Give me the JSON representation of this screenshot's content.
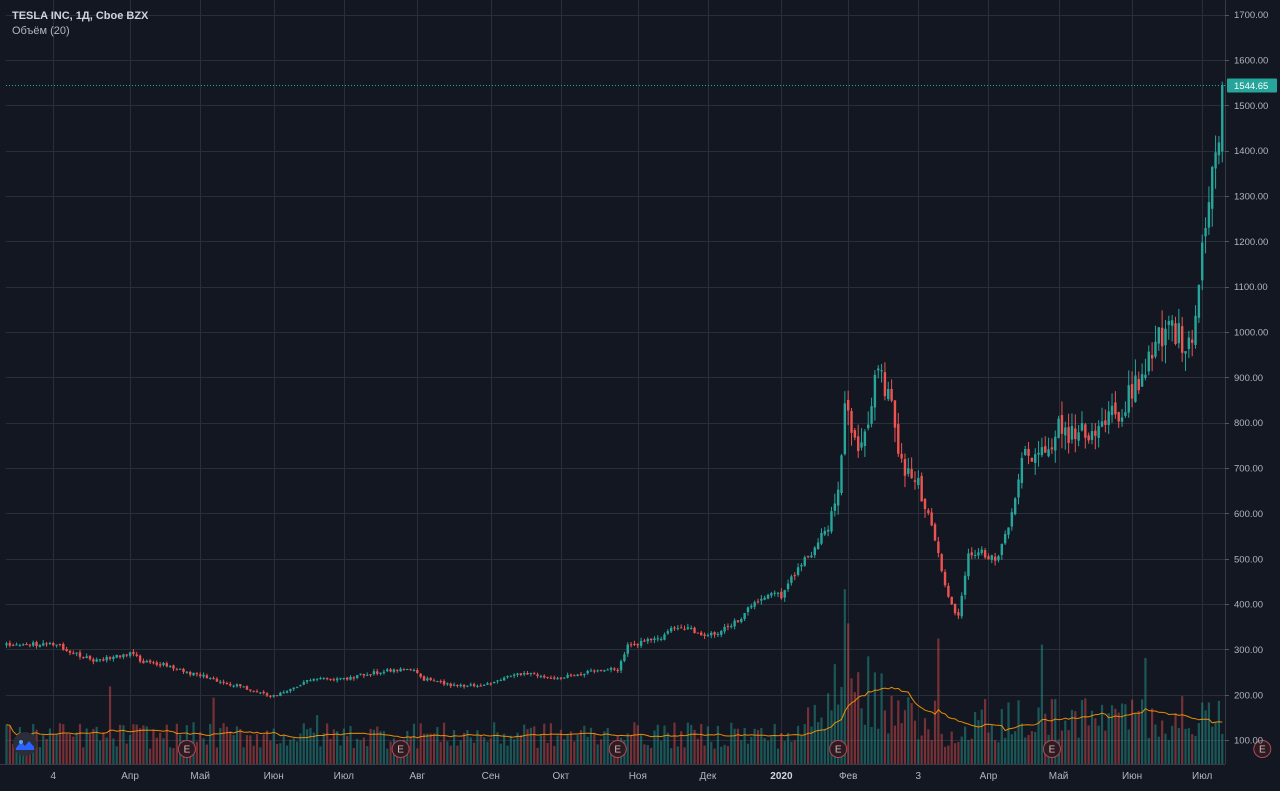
{
  "legend": {
    "title": "TESLA INC, 1Д, Cboe BZX",
    "volume_label": "Объём (20)"
  },
  "colors": {
    "background": "#131722",
    "grid": "#2a2e39",
    "up": "#26a69a",
    "down": "#ef5350",
    "ma": "#ff9800",
    "last_price_bg": "#26a69a"
  },
  "last_price_label": "1544.65",
  "earnings_marker": "E",
  "chart_data": {
    "type": "candlestick",
    "title": "TESLA INC, 1Д, Cboe BZX",
    "y_ticks": [
      "1700.00",
      "1600.00",
      "1500.00",
      "1400.00",
      "1300.00",
      "1200.00",
      "1100.00",
      "1000.00",
      "900.00",
      "800.00",
      "700.00",
      "600.00",
      "500.00",
      "400.00",
      "300.00",
      "200.00",
      "100.00"
    ],
    "y_tick_values": [
      1700,
      1600,
      1500,
      1400,
      1300,
      1200,
      1100,
      1000,
      900,
      800,
      700,
      600,
      500,
      400,
      300,
      200,
      100
    ],
    "ylim": [
      61,
      1716
    ],
    "x_ticks": [
      "4",
      "Апр",
      "Май",
      "Июн",
      "Июл",
      "Авг",
      "Сен",
      "Окт",
      "Ноя",
      "Дек",
      "2020",
      "Фев",
      "3",
      "Апр",
      "Май",
      "Июн",
      "Июл"
    ],
    "x_tick_index": [
      14,
      37,
      58,
      80,
      101,
      123,
      145,
      166,
      189,
      210,
      232,
      252,
      273,
      294,
      315,
      337,
      358
    ],
    "bold_ticks": [
      "2020"
    ],
    "last_price": 1544.65,
    "earnings_index": [
      54,
      118,
      183,
      249,
      313,
      376
    ],
    "anchors": [
      [
        0,
        310
      ],
      [
        10,
        312
      ],
      [
        14,
        314
      ],
      [
        20,
        292
      ],
      [
        26,
        278
      ],
      [
        30,
        281
      ],
      [
        37,
        290
      ],
      [
        41,
        274
      ],
      [
        47,
        266
      ],
      [
        55,
        246
      ],
      [
        60,
        239
      ],
      [
        66,
        227
      ],
      [
        72,
        213
      ],
      [
        78,
        201
      ],
      [
        80,
        196
      ],
      [
        84,
        209
      ],
      [
        90,
        231
      ],
      [
        96,
        234
      ],
      [
        101,
        234
      ],
      [
        108,
        246
      ],
      [
        113,
        251
      ],
      [
        118,
        257
      ],
      [
        122,
        258
      ],
      [
        124,
        236
      ],
      [
        130,
        227
      ],
      [
        136,
        219
      ],
      [
        142,
        220
      ],
      [
        145,
        225
      ],
      [
        150,
        241
      ],
      [
        156,
        246
      ],
      [
        161,
        238
      ],
      [
        166,
        238
      ],
      [
        172,
        246
      ],
      [
        178,
        254
      ],
      [
        181,
        256
      ],
      [
        183,
        254
      ],
      [
        186,
        308
      ],
      [
        190,
        315
      ],
      [
        195,
        324
      ],
      [
        200,
        347
      ],
      [
        204,
        350
      ],
      [
        206,
        333
      ],
      [
        210,
        332
      ],
      [
        215,
        344
      ],
      [
        220,
        372
      ],
      [
        225,
        410
      ],
      [
        230,
        430
      ],
      [
        232,
        415
      ],
      [
        236,
        470
      ],
      [
        242,
        525
      ],
      [
        246,
        570
      ],
      [
        249,
        650
      ],
      [
        251,
        850
      ],
      [
        253,
        760
      ],
      [
        255,
        760
      ],
      [
        258,
        820
      ],
      [
        260,
        900
      ],
      [
        262,
        890
      ],
      [
        264,
        850
      ],
      [
        266,
        800
      ],
      [
        268,
        700
      ],
      [
        272,
        690
      ],
      [
        276,
        600
      ],
      [
        279,
        510
      ],
      [
        282,
        410
      ],
      [
        285,
        370
      ],
      [
        288,
        510
      ],
      [
        291,
        520
      ],
      [
        294,
        500
      ],
      [
        297,
        500
      ],
      [
        301,
        600
      ],
      [
        304,
        720
      ],
      [
        308,
        740
      ],
      [
        311,
        720
      ],
      [
        313,
        760
      ],
      [
        316,
        800
      ],
      [
        319,
        770
      ],
      [
        322,
        790
      ],
      [
        325,
        780
      ],
      [
        328,
        810
      ],
      [
        331,
        820
      ],
      [
        334,
        790
      ],
      [
        336,
        870
      ],
      [
        339,
        880
      ],
      [
        342,
        940
      ],
      [
        345,
        990
      ],
      [
        348,
        1000
      ],
      [
        351,
        990
      ],
      [
        354,
        960
      ],
      [
        356,
        1040
      ],
      [
        358,
        1200
      ],
      [
        360,
        1320
      ],
      [
        362,
        1390
      ],
      [
        363,
        1380
      ],
      [
        364,
        1544.65
      ]
    ],
    "volume_ylim": [
      0,
      500
    ],
    "volume_ma_length": 20
  }
}
